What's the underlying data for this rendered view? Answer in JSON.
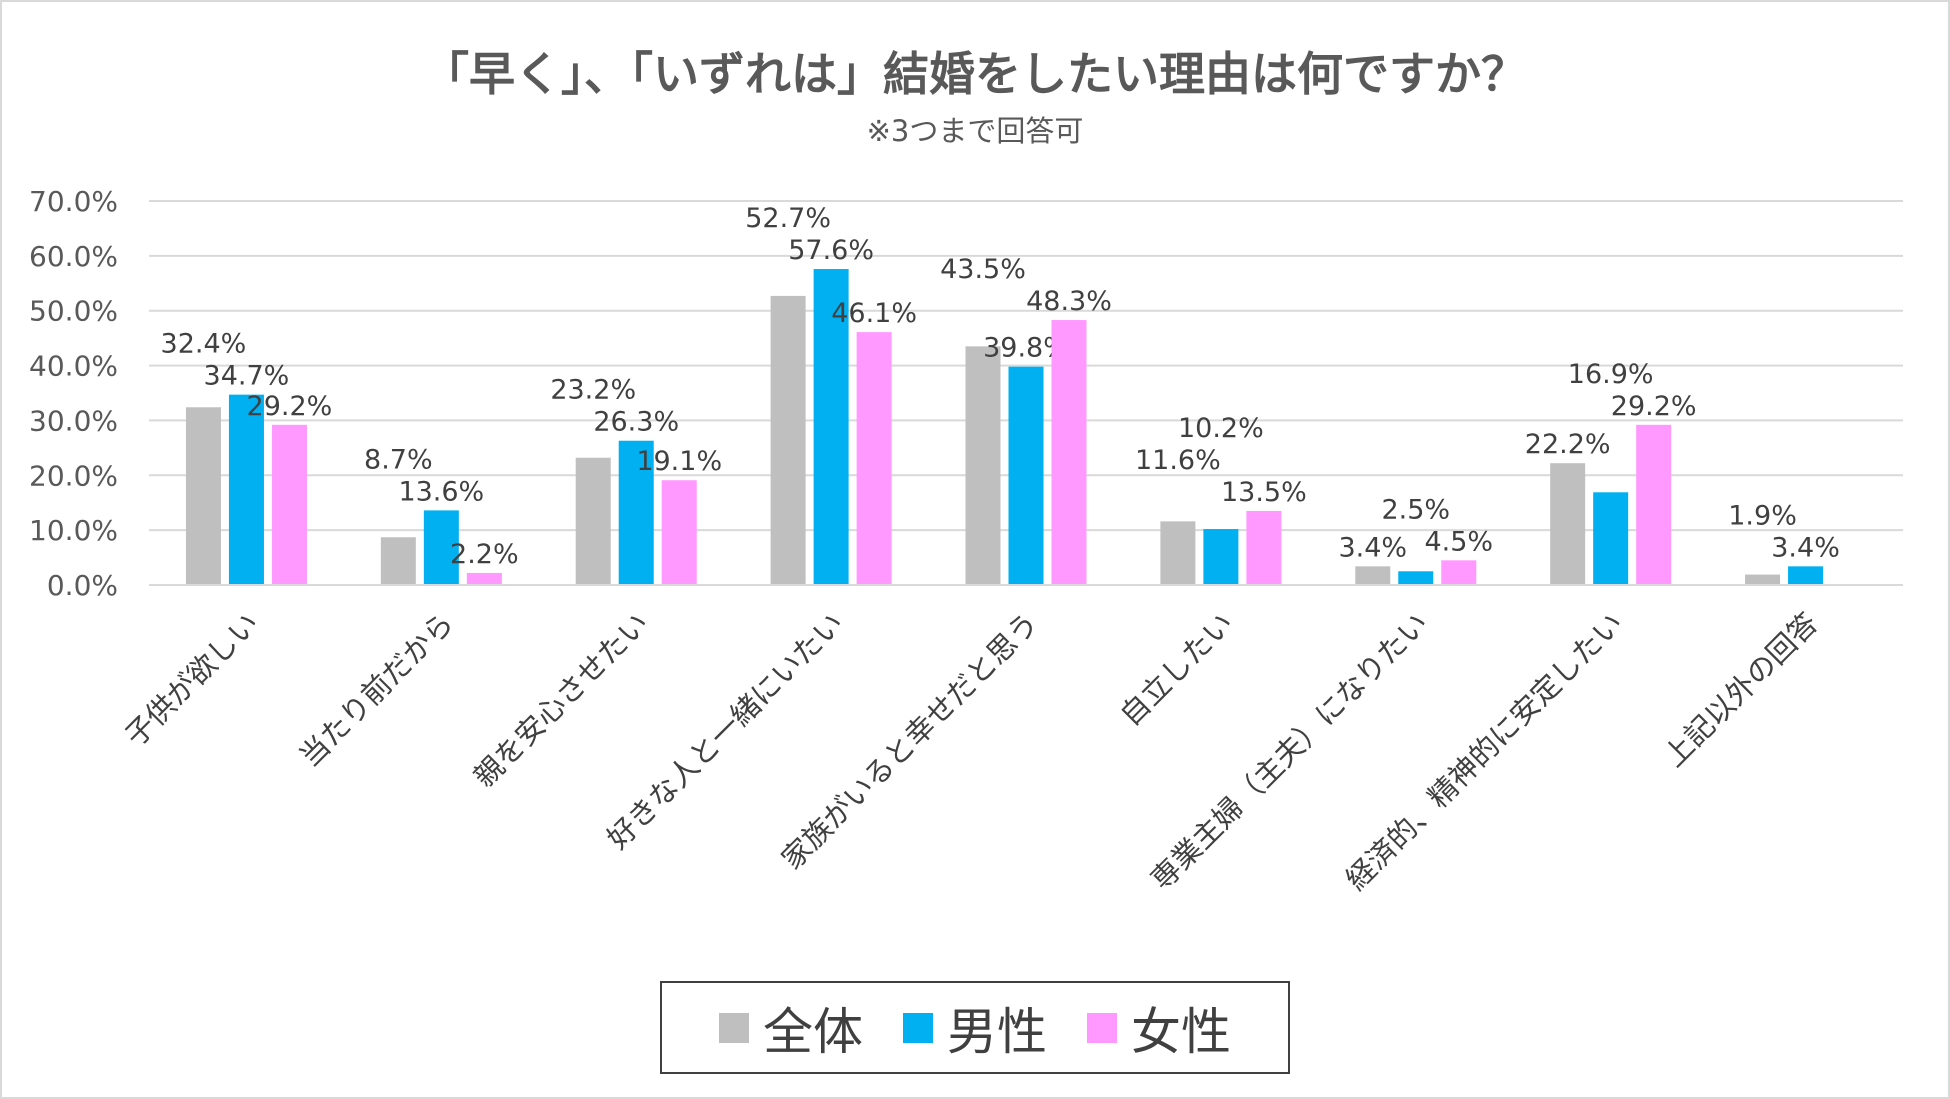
{
  "chart_data": {
    "type": "bar",
    "title": "「早く」、「いずれは」結婚をしたい理由は何ですか？",
    "subtitle": "※3つまで回答可",
    "categories": [
      "子供が欲しい",
      "当たり前だから",
      "親を安心させたい",
      "好きな人と一緒にいたい",
      "家族がいると幸せだと思う",
      "自立したい",
      "専業主婦（主夫）になりたい",
      "経済的、精神的に安定したい",
      "上記以外の回答"
    ],
    "series": [
      {
        "name": "全体",
        "color": "#bfbfbf",
        "values": [
          32.4,
          8.7,
          23.2,
          52.7,
          43.5,
          11.6,
          3.4,
          22.2,
          1.9
        ]
      },
      {
        "name": "男性",
        "color": "#00b0f0",
        "values": [
          34.7,
          13.6,
          26.3,
          57.6,
          39.8,
          10.2,
          2.5,
          16.9,
          3.4
        ]
      },
      {
        "name": "女性",
        "color": "#ff99ff",
        "values": [
          29.2,
          2.2,
          19.1,
          46.1,
          48.3,
          13.5,
          4.5,
          29.2,
          null
        ]
      }
    ],
    "yticks": [
      "0.0%",
      "10.0%",
      "20.0%",
      "30.0%",
      "40.0%",
      "50.0%",
      "60.0%",
      "70.0%"
    ],
    "ylim": [
      0,
      70
    ],
    "grid": true,
    "legend": "bottom",
    "xlabel": "",
    "ylabel": ""
  }
}
